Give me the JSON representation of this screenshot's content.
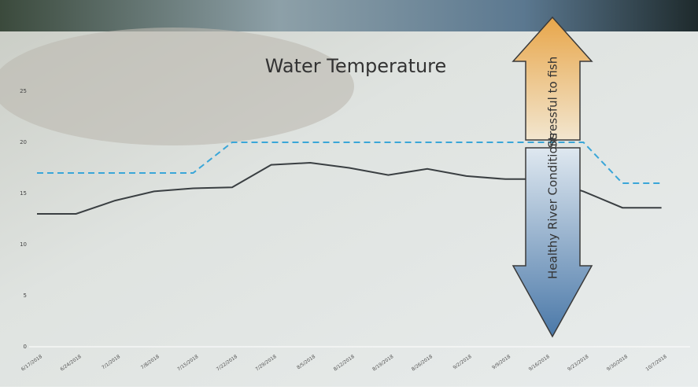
{
  "chart_data": {
    "type": "line",
    "title": "Water Temperature",
    "categories": [
      "6/17/2018",
      "6/24/2018",
      "7/1/2018",
      "7/8/2018",
      "7/15/2018",
      "7/22/2018",
      "7/29/2018",
      "8/5/2018",
      "8/12/2018",
      "8/19/2018",
      "8/26/2018",
      "9/2/2018",
      "9/9/2018",
      "9/16/2018",
      "9/23/2018",
      "9/30/2018",
      "10/7/2018"
    ],
    "series": [
      {
        "color": "#3a3f42",
        "dash": false,
        "values": [
          13.0,
          13.0,
          14.3,
          15.2,
          15.5,
          15.6,
          17.8,
          18.0,
          17.5,
          16.8,
          17.4,
          16.7,
          16.4,
          16.4,
          15.2,
          13.6,
          13.6
        ]
      },
      {
        "color": "#3aa6d8",
        "dash": true,
        "values": [
          17,
          17,
          17,
          17,
          17,
          20,
          20,
          20,
          20,
          20,
          20,
          20,
          20,
          20,
          20,
          16,
          16
        ]
      }
    ],
    "ylim": [
      0,
      25
    ],
    "yticks": [
      0,
      5,
      10,
      15,
      20,
      25
    ],
    "grid": false,
    "annotations": {
      "up": "Stressful to fish",
      "down": "Healthy River Conditions"
    }
  }
}
